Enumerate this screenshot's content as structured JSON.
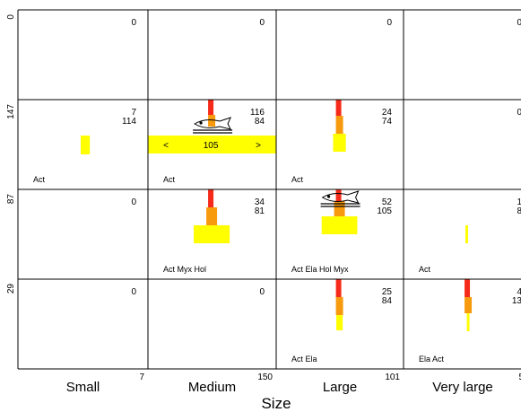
{
  "chart_data": {
    "type": "mosaic",
    "xlabel": "Size",
    "colors": {
      "bar_top": "#f52a1a",
      "bar_mid": "#f79a0e",
      "bar_base": "#ffff00",
      "grid": "#000000"
    },
    "columns": [
      {
        "label": "Small",
        "total": "7"
      },
      {
        "label": "Medium",
        "total": "150"
      },
      {
        "label": "Large",
        "total": "101"
      },
      {
        "label": "Very large",
        "total": "5"
      }
    ],
    "rows": [
      {
        "label": "0"
      },
      {
        "label": "147"
      },
      {
        "label": "87"
      },
      {
        "label": "29"
      }
    ],
    "cells": [
      {
        "row": 0,
        "col": 0,
        "n1": "0",
        "n2": "",
        "taxa": "",
        "top": 0,
        "mid": 0,
        "base": 0,
        "base_width": 0
      },
      {
        "row": 0,
        "col": 1,
        "n1": "0",
        "n2": "",
        "taxa": "",
        "top": 0,
        "mid": 0,
        "base": 0,
        "base_width": 0
      },
      {
        "row": 0,
        "col": 2,
        "n1": "0",
        "n2": "",
        "taxa": "",
        "top": 0,
        "mid": 0,
        "base": 0,
        "base_width": 0
      },
      {
        "row": 0,
        "col": 3,
        "n1": "0",
        "n2": "",
        "taxa": "",
        "top": 0,
        "mid": 0,
        "base": 0,
        "base_width": 0
      },
      {
        "row": 1,
        "col": 0,
        "n1": "7",
        "n2": "114",
        "taxa": "Act",
        "top": 0,
        "mid": 0,
        "base": 0.21,
        "base_width": 0.07
      },
      {
        "row": 1,
        "col": 1,
        "n1": "116",
        "n2": "84",
        "taxa": "Act",
        "top": 0.17,
        "mid": 0.13,
        "base": 0,
        "base_width": 0,
        "fish": true,
        "band": {
          "value": "105",
          "left": "<",
          "right": ">"
        }
      },
      {
        "row": 1,
        "col": 2,
        "n1": "24",
        "n2": "74",
        "taxa": "Act",
        "top": 0.18,
        "mid": 0.2,
        "base": 0.2,
        "base_width": 0.1
      },
      {
        "row": 1,
        "col": 3,
        "n1": "0",
        "n2": "",
        "taxa": "",
        "top": 0,
        "mid": 0,
        "base": 0,
        "base_width": 0
      },
      {
        "row": 2,
        "col": 0,
        "n1": "0",
        "n2": "",
        "taxa": "",
        "top": 0,
        "mid": 0,
        "base": 0,
        "base_width": 0
      },
      {
        "row": 2,
        "col": 1,
        "n1": "34",
        "n2": "81",
        "taxa": "Act Myx Hol",
        "top": 0.2,
        "mid": 0.2,
        "base": 0.2,
        "base_width": 0.28
      },
      {
        "row": 2,
        "col": 2,
        "n1": "52",
        "n2": "105",
        "taxa": "Act Ela Hol Myx",
        "top": 0.13,
        "mid": 0.17,
        "base": 0.2,
        "base_width": 0.28,
        "fish": true
      },
      {
        "row": 2,
        "col": 3,
        "n1": "1",
        "n2": "8",
        "taxa": "Act",
        "top": 0,
        "mid": 0,
        "base": 0.2,
        "base_width": 0.02
      },
      {
        "row": 3,
        "col": 0,
        "n1": "0",
        "n2": "",
        "taxa": "",
        "top": 0,
        "mid": 0,
        "base": 0,
        "base_width": 0
      },
      {
        "row": 3,
        "col": 1,
        "n1": "0",
        "n2": "",
        "taxa": "",
        "top": 0,
        "mid": 0,
        "base": 0,
        "base_width": 0
      },
      {
        "row": 3,
        "col": 2,
        "n1": "25",
        "n2": "84",
        "taxa": "Act Ela",
        "top": 0.2,
        "mid": 0.2,
        "base": 0.17,
        "base_width": 0.05
      },
      {
        "row": 3,
        "col": 3,
        "n1": "4",
        "n2": "13",
        "taxa": "Ela Act",
        "top": 0.2,
        "mid": 0.18,
        "base": 0.2,
        "base_width": 0.02
      }
    ]
  }
}
